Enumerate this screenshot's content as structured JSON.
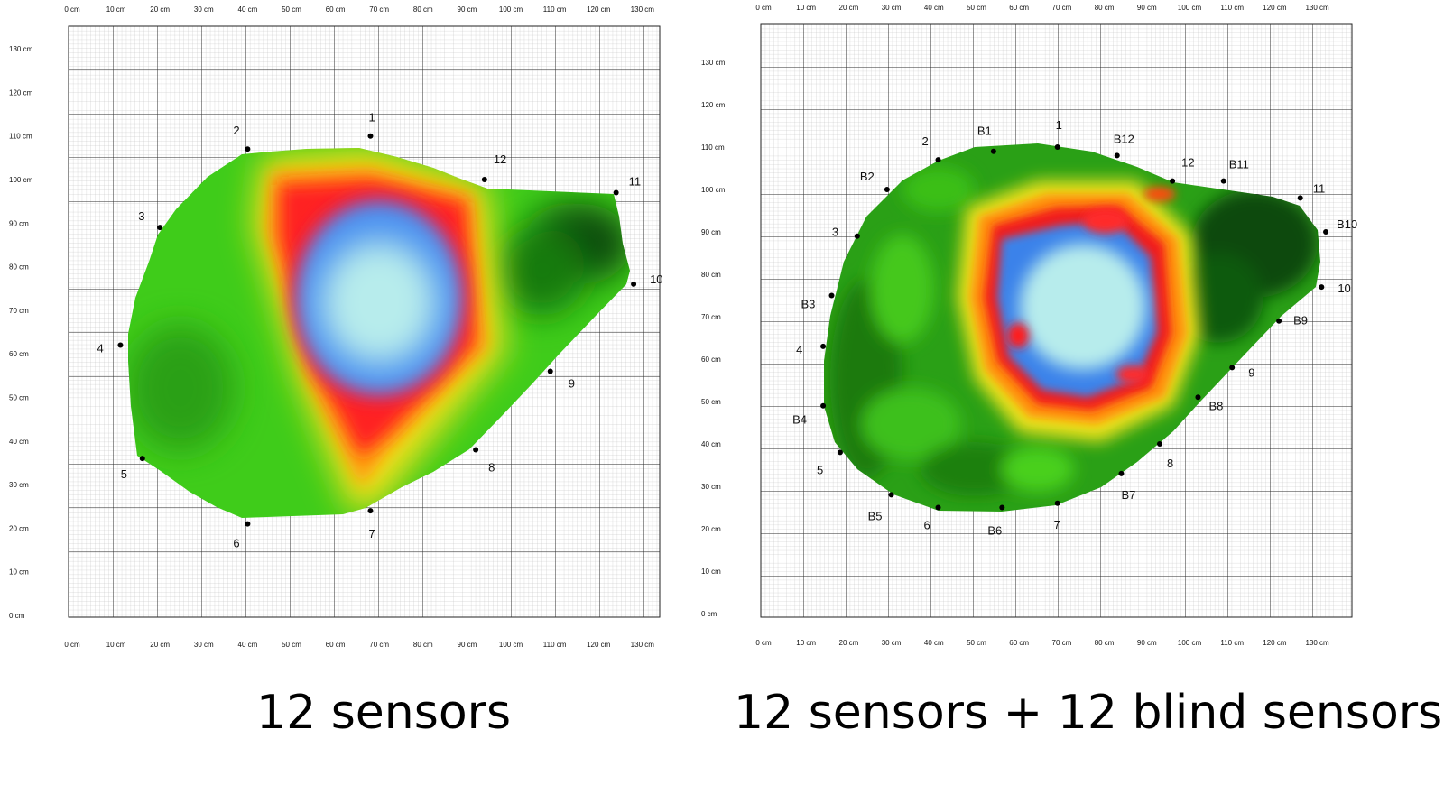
{
  "panels": [
    {
      "id": "left",
      "caption": "12 sensors",
      "axis_x_labels": [
        "0 cm",
        "10 cm",
        "20 cm",
        "30 cm",
        "40 cm",
        "50 cm",
        "60 cm",
        "70 cm",
        "80 cm",
        "90 cm",
        "100 cm",
        "110 cm",
        "120 cm",
        "130 cm"
      ],
      "axis_y_labels": [
        "0 cm",
        "10 cm",
        "20 cm",
        "30 cm",
        "40 cm",
        "50 cm",
        "60 cm",
        "70 cm",
        "80 cm",
        "90 cm",
        "100 cm",
        "110 cm",
        "120 cm",
        "130 cm"
      ],
      "sensors": [
        {
          "label": "1",
          "x": 68,
          "y": 110
        },
        {
          "label": "2",
          "x": 40,
          "y": 107
        },
        {
          "label": "3",
          "x": 20,
          "y": 89
        },
        {
          "label": "4",
          "x": 11,
          "y": 62
        },
        {
          "label": "5",
          "x": 16,
          "y": 36
        },
        {
          "label": "6",
          "x": 40,
          "y": 21
        },
        {
          "label": "7",
          "x": 68,
          "y": 24
        },
        {
          "label": "8",
          "x": 92,
          "y": 38
        },
        {
          "label": "9",
          "x": 109,
          "y": 56
        },
        {
          "label": "10",
          "x": 128,
          "y": 76
        },
        {
          "label": "11",
          "x": 124,
          "y": 97
        },
        {
          "label": "12",
          "x": 94,
          "y": 100
        }
      ]
    },
    {
      "id": "right",
      "caption": "12 sensors + 12 blind sensors",
      "axis_x_labels": [
        "0 cm",
        "10 cm",
        "20 cm",
        "30 cm",
        "40 cm",
        "50 cm",
        "60 cm",
        "70 cm",
        "80 cm",
        "90 cm",
        "100 cm",
        "110 cm",
        "120 cm",
        "130 cm"
      ],
      "axis_y_labels": [
        "0 cm",
        "10 cm",
        "20 cm",
        "30 cm",
        "40 cm",
        "50 cm",
        "60 cm",
        "70 cm",
        "80 cm",
        "90 cm",
        "100 cm",
        "110 cm",
        "120 cm",
        "130 cm"
      ],
      "sensors": [
        {
          "label": "1",
          "x": 69,
          "y": 110
        },
        {
          "label": "B1",
          "x": 54,
          "y": 109
        },
        {
          "label": "B12",
          "x": 83,
          "y": 108
        },
        {
          "label": "2",
          "x": 41,
          "y": 107
        },
        {
          "label": "12",
          "x": 96,
          "y": 102
        },
        {
          "label": "B11",
          "x": 108,
          "y": 102
        },
        {
          "label": "B2",
          "x": 29,
          "y": 100
        },
        {
          "label": "11",
          "x": 126,
          "y": 98
        },
        {
          "label": "B10",
          "x": 132,
          "y": 90
        },
        {
          "label": "3",
          "x": 22,
          "y": 89
        },
        {
          "label": "10",
          "x": 131,
          "y": 77
        },
        {
          "label": "B3",
          "x": 16,
          "y": 75
        },
        {
          "label": "B9",
          "x": 121,
          "y": 69
        },
        {
          "label": "4",
          "x": 14,
          "y": 63
        },
        {
          "label": "9",
          "x": 110,
          "y": 58
        },
        {
          "label": "B8",
          "x": 102,
          "y": 51
        },
        {
          "label": "B4",
          "x": 14,
          "y": 49
        },
        {
          "label": "8",
          "x": 93,
          "y": 40
        },
        {
          "label": "5",
          "x": 18,
          "y": 38
        },
        {
          "label": "B7",
          "x": 84,
          "y": 33
        },
        {
          "label": "B5",
          "x": 30,
          "y": 28
        },
        {
          "label": "7",
          "x": 69,
          "y": 26
        },
        {
          "label": "6",
          "x": 41,
          "y": 25
        },
        {
          "label": "B6",
          "x": 56,
          "y": 25
        }
      ]
    }
  ]
}
